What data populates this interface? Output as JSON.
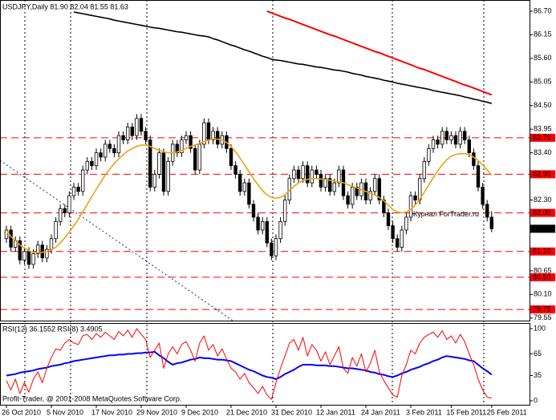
{
  "chart_data": [
    {
      "type": "candlestick",
      "title": "USDJPY,Daily  81.90 82.04 81.55 81.63",
      "watermark": "Журнал ForTrader.ru",
      "categories": [
        "26 Oct 2010",
        null,
        null,
        null,
        null,
        null,
        null,
        null,
        null,
        null,
        "5 Nov 2010",
        null,
        null,
        null,
        null,
        null,
        null,
        null,
        null,
        null,
        "17 Nov 2010",
        null,
        null,
        null,
        null,
        null,
        null,
        null,
        null,
        null,
        "29 Nov 2010",
        null,
        null,
        null,
        null,
        null,
        null,
        null,
        null,
        null,
        "9 Dec 2010",
        null,
        null,
        null,
        null,
        null,
        null,
        null,
        null,
        null,
        "21 Dec 2010",
        null,
        null,
        null,
        null,
        null,
        null,
        null,
        null,
        null,
        "31 Dec 2010",
        null,
        null,
        null,
        null,
        null,
        null,
        null,
        null,
        null,
        "12 Jan 2011",
        null,
        null,
        null,
        null,
        null,
        null,
        null,
        null,
        null,
        "24 Jan 2011",
        null,
        null,
        null,
        null,
        null,
        null,
        null,
        null,
        null,
        "3 Feb 2011",
        null,
        null,
        null,
        null,
        null,
        null,
        null,
        null,
        "15 Feb 2011",
        null,
        null,
        null,
        null,
        null,
        null,
        null,
        null,
        "25 Feb 2011"
      ],
      "open": [
        81.4,
        81.6,
        81.2,
        81.35,
        80.9,
        81.1,
        80.8,
        81.05,
        81.25,
        80.95,
        81.15,
        81.4,
        81.8,
        82.1,
        82,
        82.4,
        82.6,
        82.5,
        83,
        83.2,
        83.1,
        83.4,
        83.3,
        83.6,
        83.5,
        83.4,
        83.8,
        83.7,
        84,
        83.8,
        84.2,
        83.9,
        83.7,
        82.6,
        82.9,
        83.4,
        82.5,
        83.2,
        83.6,
        83.4,
        83.7,
        83.8,
        83.5,
        83,
        83.6,
        84.1,
        83.7,
        83.9,
        83.6,
        83.8,
        83.5,
        83.1,
        82.9,
        82.5,
        82.7,
        82.2,
        81.9,
        81.6,
        81.8,
        81.3,
        81,
        81.4,
        81.8,
        82.3,
        82.8,
        83,
        82.8,
        83.1,
        82.7,
        83,
        82.9,
        82.6,
        82.8,
        82.5,
        82.7,
        83,
        82.4,
        82.2,
        82.6,
        82.4,
        82.7,
        82.3,
        82.5,
        82.8,
        82.3,
        82,
        81.7,
        81.4,
        81.2,
        81.6,
        81.9,
        82.4,
        82.3,
        82.8,
        83.2,
        83.5,
        83.7,
        83.6,
        83.9,
        83.7,
        83.8,
        83.6,
        83.9,
        83.7,
        83.4,
        83.1,
        82.6,
        82.2,
        81.9
      ],
      "high": [
        81.7,
        81.7,
        81.45,
        81.45,
        81.2,
        81.2,
        81.15,
        81.35,
        81.35,
        81.25,
        81.5,
        81.9,
        82.2,
        82.2,
        82.5,
        82.7,
        82.7,
        83.1,
        83.3,
        83.3,
        83.5,
        83.5,
        83.7,
        83.7,
        83.6,
        83.9,
        83.9,
        84.1,
        84.1,
        84.3,
        84.3,
        84,
        83.8,
        83,
        83.5,
        83.5,
        83.3,
        83.7,
        83.7,
        83.8,
        83.9,
        83.9,
        83.6,
        83.7,
        84.2,
        84.2,
        84,
        84,
        83.9,
        83.9,
        83.6,
        83.2,
        83,
        82.8,
        82.8,
        82.3,
        82,
        81.9,
        81.9,
        81.4,
        81.5,
        81.9,
        82.4,
        82.9,
        83.1,
        83.1,
        83.2,
        83.2,
        83.1,
        83.1,
        83,
        82.9,
        82.9,
        82.8,
        83.1,
        83.1,
        82.5,
        82.7,
        82.7,
        82.8,
        82.8,
        82.6,
        82.9,
        82.9,
        82.4,
        82.1,
        81.8,
        81.5,
        81.7,
        82,
        82.5,
        82.5,
        82.9,
        83.3,
        83.6,
        83.8,
        83.8,
        84,
        84,
        83.9,
        83.9,
        84,
        84,
        83.8,
        83.5,
        83.2,
        82.7,
        82.3,
        82.04
      ],
      "low": [
        81.3,
        81.1,
        81.1,
        80.8,
        80.8,
        80.7,
        80.7,
        80.95,
        80.85,
        80.85,
        81.05,
        81.3,
        81.7,
        81.9,
        81.9,
        82.3,
        82.4,
        82.4,
        82.9,
        83,
        83,
        83.2,
        83.2,
        83.4,
        83.3,
        83.3,
        83.6,
        83.6,
        83.7,
        83.7,
        83.8,
        83.6,
        82.5,
        82.5,
        82.8,
        82.4,
        82.4,
        83.1,
        83.3,
        83.3,
        83.6,
        83.4,
        82.9,
        82.9,
        83.5,
        83.6,
        83.6,
        83.5,
        83.5,
        83.4,
        83,
        82.8,
        82.4,
        82.4,
        82.1,
        81.8,
        81.5,
        81.5,
        81.2,
        80.9,
        80.9,
        81.3,
        81.7,
        82.2,
        82.7,
        82.7,
        82.7,
        82.6,
        82.6,
        82.8,
        82.5,
        82.5,
        82.4,
        82.4,
        82.6,
        82.3,
        82.1,
        82.1,
        82.3,
        82.3,
        82.2,
        82.2,
        82.4,
        82.2,
        81.9,
        81.6,
        81.3,
        81.1,
        81.1,
        81.5,
        81.8,
        82.2,
        82.2,
        82.7,
        83.1,
        83.4,
        83.5,
        83.5,
        83.6,
        83.6,
        83.5,
        83.5,
        83.6,
        83.3,
        83,
        82.5,
        82.1,
        81.8,
        81.55
      ],
      "close": [
        81.6,
        81.2,
        81.35,
        80.9,
        81.1,
        80.8,
        81.05,
        81.25,
        80.95,
        81.15,
        81.4,
        81.8,
        82.1,
        82,
        82.4,
        82.6,
        82.5,
        83,
        83.2,
        83.1,
        83.4,
        83.3,
        83.6,
        83.5,
        83.4,
        83.8,
        83.7,
        84,
        83.8,
        84.2,
        83.9,
        83.7,
        82.6,
        82.9,
        83.4,
        82.5,
        83.2,
        83.6,
        83.4,
        83.7,
        83.8,
        83.5,
        83,
        83.6,
        84.1,
        83.7,
        83.9,
        83.6,
        83.8,
        83.5,
        83.1,
        82.9,
        82.5,
        82.7,
        82.2,
        81.9,
        81.6,
        81.8,
        81.3,
        81,
        81.4,
        81.8,
        82.3,
        82.8,
        83,
        82.8,
        83.1,
        82.7,
        83,
        82.9,
        82.6,
        82.8,
        82.5,
        82.7,
        83,
        82.4,
        82.2,
        82.6,
        82.4,
        82.7,
        82.3,
        82.5,
        82.8,
        82.3,
        82,
        81.7,
        81.4,
        81.2,
        81.6,
        81.9,
        82.4,
        82.3,
        82.8,
        83.2,
        83.5,
        83.7,
        83.6,
        83.9,
        83.7,
        83.8,
        83.6,
        83.9,
        83.7,
        83.4,
        83.1,
        82.6,
        82.2,
        81.9,
        81.63
      ],
      "up_color": "#ffffff",
      "down_color": "#000000",
      "series": [
        {
          "color": "#f0a010",
          "width": 1.6,
          "values": [
            81.6,
            81.45,
            81.35,
            81.25,
            81.18,
            81.12,
            81.08,
            81.07,
            81.08,
            81.1,
            81.14,
            81.2,
            81.3,
            81.42,
            81.55,
            81.7,
            81.85,
            82.02,
            82.2,
            82.38,
            82.55,
            82.72,
            82.88,
            83.02,
            83.15,
            83.26,
            83.36,
            83.44,
            83.5,
            83.55,
            83.58,
            83.58,
            83.55,
            83.5,
            83.46,
            83.42,
            83.4,
            83.4,
            83.42,
            83.45,
            83.5,
            83.55,
            83.58,
            83.62,
            83.66,
            83.7,
            83.72,
            83.72,
            83.7,
            83.64,
            83.55,
            83.42,
            83.28,
            83.12,
            82.96,
            82.8,
            82.65,
            82.52,
            82.42,
            82.36,
            82.34,
            82.36,
            82.42,
            82.52,
            82.62,
            82.7,
            82.75,
            82.78,
            82.8,
            82.8,
            82.79,
            82.78,
            82.76,
            82.74,
            82.72,
            82.7,
            82.66,
            82.62,
            82.58,
            82.54,
            82.5,
            82.46,
            82.42,
            82.36,
            82.28,
            82.18,
            82.08,
            82.02,
            82,
            82.02,
            82.08,
            82.18,
            82.32,
            82.48,
            82.65,
            82.82,
            82.98,
            83.12,
            83.24,
            83.32,
            83.36,
            83.38,
            83.38,
            83.36,
            83.3,
            83.22,
            83.12,
            83,
            82.88
          ]
        },
        {
          "color": "#000000",
          "width": 1.6,
          "values": [
            null,
            null,
            null,
            null,
            null,
            null,
            null,
            null,
            null,
            null,
            null,
            null,
            null,
            null,
            null,
            86.68,
            86.66,
            86.64,
            86.62,
            86.6,
            86.58,
            86.56,
            86.54,
            86.52,
            86.49,
            86.47,
            86.45,
            86.43,
            86.41,
            86.39,
            86.37,
            86.35,
            86.33,
            86.31,
            86.3,
            86.28,
            86.26,
            86.24,
            86.22,
            86.21,
            86.19,
            86.17,
            86.15,
            86.13,
            86.12,
            86.1,
            86.06,
            86.03,
            85.99,
            85.95,
            85.91,
            85.88,
            85.84,
            85.8,
            85.77,
            85.73,
            85.69,
            85.65,
            85.62,
            85.58,
            85.56,
            85.55,
            85.53,
            85.51,
            85.49,
            85.47,
            85.46,
            85.44,
            85.42,
            85.4,
            85.39,
            85.37,
            85.35,
            85.33,
            85.32,
            85.3,
            85.28,
            85.25,
            85.23,
            85.21,
            85.18,
            85.16,
            85.14,
            85.12,
            85.09,
            85.07,
            85.05,
            85.02,
            85,
            84.98,
            84.96,
            84.94,
            84.92,
            84.9,
            84.88,
            84.85,
            84.83,
            84.81,
            84.79,
            84.77,
            84.75,
            84.73,
            84.7,
            84.68,
            84.65,
            84.63,
            84.6,
            84.58,
            84.55
          ]
        },
        {
          "color": "#ff0000",
          "width": 2,
          "values": [
            null,
            null,
            null,
            null,
            null,
            null,
            null,
            null,
            null,
            null,
            null,
            null,
            null,
            null,
            null,
            null,
            null,
            null,
            null,
            null,
            null,
            null,
            null,
            null,
            null,
            null,
            null,
            null,
            null,
            null,
            null,
            null,
            null,
            null,
            null,
            null,
            null,
            null,
            null,
            null,
            null,
            null,
            null,
            null,
            null,
            null,
            null,
            null,
            null,
            null,
            null,
            null,
            null,
            null,
            null,
            null,
            null,
            null,
            86.7,
            86.66,
            86.62,
            86.58,
            86.54,
            86.51,
            86.47,
            86.43,
            86.39,
            86.35,
            86.31,
            86.27,
            86.23,
            86.19,
            86.15,
            86.12,
            86.08,
            86.04,
            86,
            85.96,
            85.92,
            85.88,
            85.84,
            85.8,
            85.76,
            85.73,
            85.69,
            85.65,
            85.61,
            85.57,
            85.53,
            85.49,
            85.45,
            85.41,
            85.37,
            85.34,
            85.3,
            85.26,
            85.22,
            85.18,
            85.14,
            85.1,
            85.06,
            85.02,
            84.98,
            84.95,
            84.91,
            84.87,
            84.83,
            84.79,
            84.75
          ]
        }
      ],
      "levels": {
        "color": "#ff0000",
        "values": [
          83.75,
          {
            "value": 82.9,
            "label": "82.90"
          },
          {
            "value": 82,
            "label": "82.00"
          },
          {
            "value": 81.1,
            "label": "81.10"
          },
          {
            "value": 80.5,
            "label": "80.50"
          },
          79.75
        ]
      },
      "ylim": [
        79.49,
        86.96
      ],
      "yticks": [
        {
          "value": 86.7,
          "label": "86.70"
        },
        86.15,
        {
          "value": 85.6,
          "label": "85.60"
        },
        85.05,
        {
          "value": 84.5,
          "label": "84.50"
        },
        83.95,
        {
          "value": 83.4,
          "label": "83.40"
        },
        {
          "value": 82.3,
          "label": "82.30"
        },
        80.65,
        {
          "value": 80.1,
          "label": "80.10"
        },
        79.55
      ]
    },
    {
      "type": "line",
      "title": "RSI(12) 36.1552  RSI(8) 3.4905",
      "footer": "Profit-Trader, @ 2001-2008 MetaQuotes Software Corp.",
      "series": [
        {
          "color": "#0000ff",
          "width": 2,
          "values": [
            35,
            36,
            37,
            39,
            40,
            41,
            42,
            44,
            45,
            46,
            48,
            49,
            50,
            52,
            53,
            55,
            56,
            57,
            58,
            59,
            60,
            61,
            62,
            63,
            63,
            64,
            64,
            65,
            65,
            66,
            66,
            67,
            67,
            68,
            63,
            59,
            54,
            50,
            52,
            53,
            55,
            57,
            58,
            60,
            59,
            59,
            58,
            57,
            57,
            56,
            55,
            52,
            49,
            46,
            43,
            41,
            38,
            35,
            33,
            32,
            30,
            33,
            37,
            40,
            43,
            47,
            50,
            50,
            50,
            49,
            49,
            49,
            48,
            48,
            47,
            46,
            45,
            45,
            44,
            43,
            42,
            40,
            39,
            37,
            36,
            34,
            33,
            35,
            38,
            40,
            43,
            45,
            47,
            50,
            52,
            55,
            57,
            60,
            62,
            61,
            60,
            59,
            58,
            56,
            55,
            50,
            45,
            41,
            36.1552
          ]
        },
        {
          "color": "#ff0000",
          "width": 1,
          "values": [
            28,
            15,
            30,
            10,
            25,
            12,
            30,
            40,
            25,
            45,
            60,
            72,
            70,
            80,
            85,
            80,
            78,
            90,
            92,
            85,
            93,
            88,
            95,
            90,
            85,
            96,
            90,
            98,
            88,
            100,
            92,
            85,
            60,
            70,
            80,
            45,
            65,
            75,
            65,
            78,
            82,
            70,
            55,
            80,
            90,
            70,
            78,
            62,
            72,
            58,
            45,
            40,
            30,
            38,
            25,
            18,
            10,
            20,
            8,
            2,
            25,
            45,
            62,
            80,
            85,
            70,
            88,
            62,
            78,
            70,
            55,
            68,
            50,
            62,
            75,
            45,
            38,
            60,
            48,
            65,
            40,
            52,
            70,
            40,
            28,
            18,
            8,
            5,
            35,
            50,
            70,
            65,
            80,
            88,
            92,
            95,
            88,
            97,
            85,
            90,
            80,
            92,
            82,
            65,
            50,
            30,
            15,
            5,
            3.4905
          ]
        }
      ],
      "ylim": [
        0,
        100
      ],
      "yticks": [
        100,
        65,
        35,
        0
      ]
    }
  ]
}
